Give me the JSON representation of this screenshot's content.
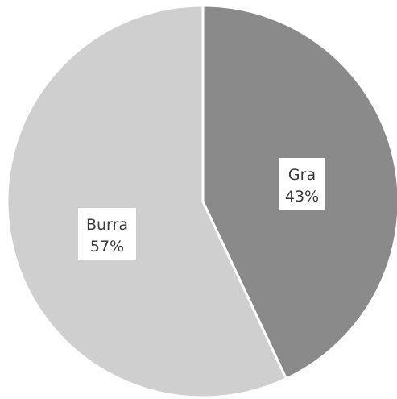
{
  "chart_data": {
    "type": "pie",
    "title": "",
    "slices": [
      {
        "label": "Gra",
        "value": 43,
        "percent_label": "43%",
        "color": "#8a8a8a"
      },
      {
        "label": "Burra",
        "value": 57,
        "percent_label": "57%",
        "color": "#cfcfcf"
      }
    ],
    "start_angle": "12 o'clock",
    "direction": "clockwise",
    "legend": "none",
    "data_labels": "inside, category name and percentage"
  }
}
